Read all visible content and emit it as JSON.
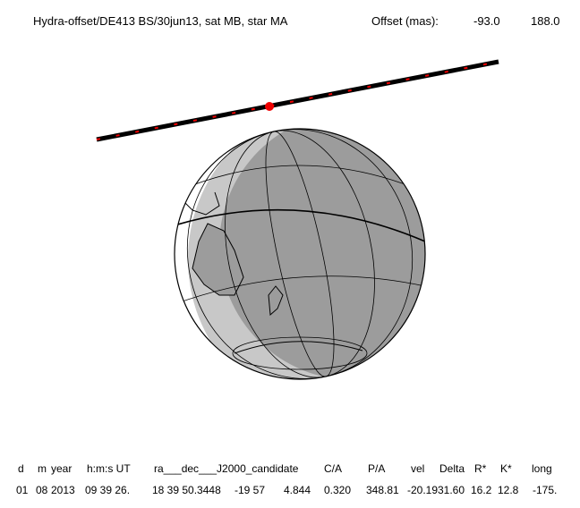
{
  "header": {
    "title": "Hydra-offset/DE413 BS/30jun13, sat MB, star MA",
    "offset_label": "Offset (mas):",
    "offset_x": "-93.0",
    "offset_y": "188.0"
  },
  "footer": {
    "columns": [
      "d",
      "m",
      "year",
      "h:m:s UT",
      "ra___dec___J2000_candidate",
      "C/A",
      "P/A",
      "vel",
      "Delta",
      "R*",
      "K*",
      "long"
    ],
    "values": [
      "01",
      "08",
      "2013",
      "09 39 26.",
      "18 39 50.3448",
      "-19 57",
      "4.844",
      "0.320",
      "348.81",
      "-20.19",
      "31.60",
      "16.2",
      "12.8",
      "-175."
    ]
  }
}
